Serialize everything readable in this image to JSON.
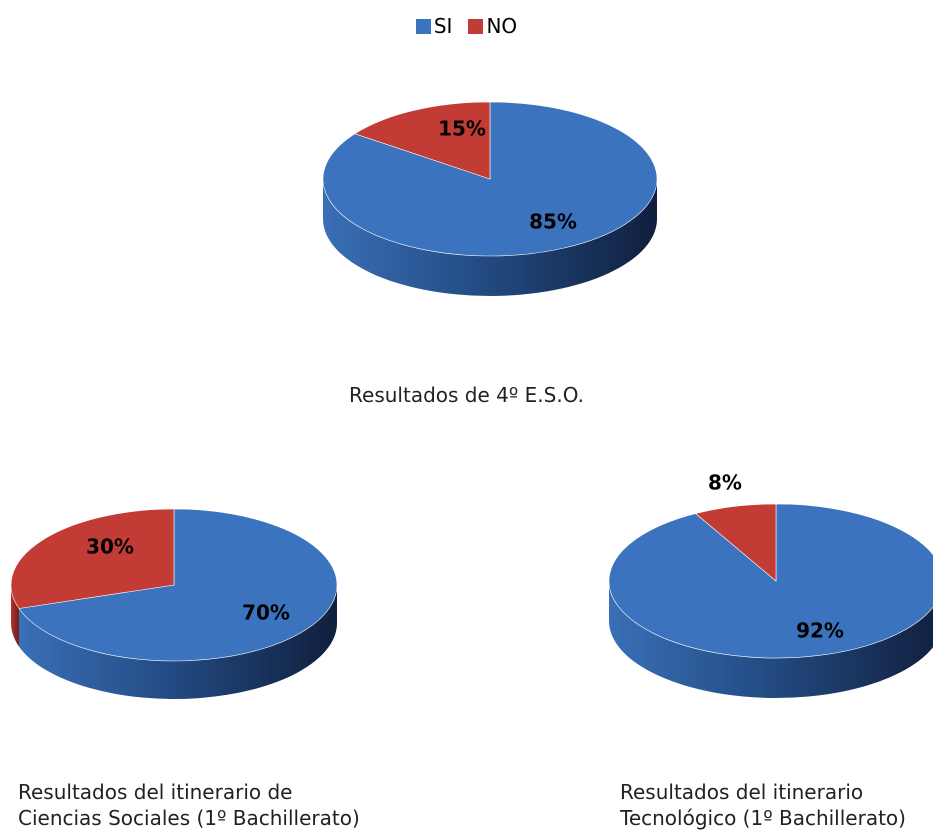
{
  "legend": {
    "items": [
      {
        "label": "SI",
        "color": "#3B73BE"
      },
      {
        "label": "NO",
        "color": "#C23B35"
      }
    ]
  },
  "chart_data": [
    {
      "type": "pie",
      "title": "Resultados de 4º E.S.O.",
      "categories": [
        "SI",
        "NO"
      ],
      "values": [
        85,
        15
      ],
      "labels": [
        "85%",
        "15%"
      ],
      "legend_position": "top"
    },
    {
      "type": "pie",
      "title": [
        "Resultados del itinerario de",
        "Ciencias Sociales (1º Bachillerato)"
      ],
      "categories": [
        "SI",
        "NO"
      ],
      "values": [
        70,
        30
      ],
      "labels": [
        "70%",
        "30%"
      ]
    },
    {
      "type": "pie",
      "title": [
        "Resultados del itinerario",
        "Tecnológico (1º Bachillerato)"
      ],
      "categories": [
        "SI",
        "NO"
      ],
      "values": [
        92,
        8
      ],
      "labels": [
        "92%",
        "8%"
      ]
    }
  ]
}
